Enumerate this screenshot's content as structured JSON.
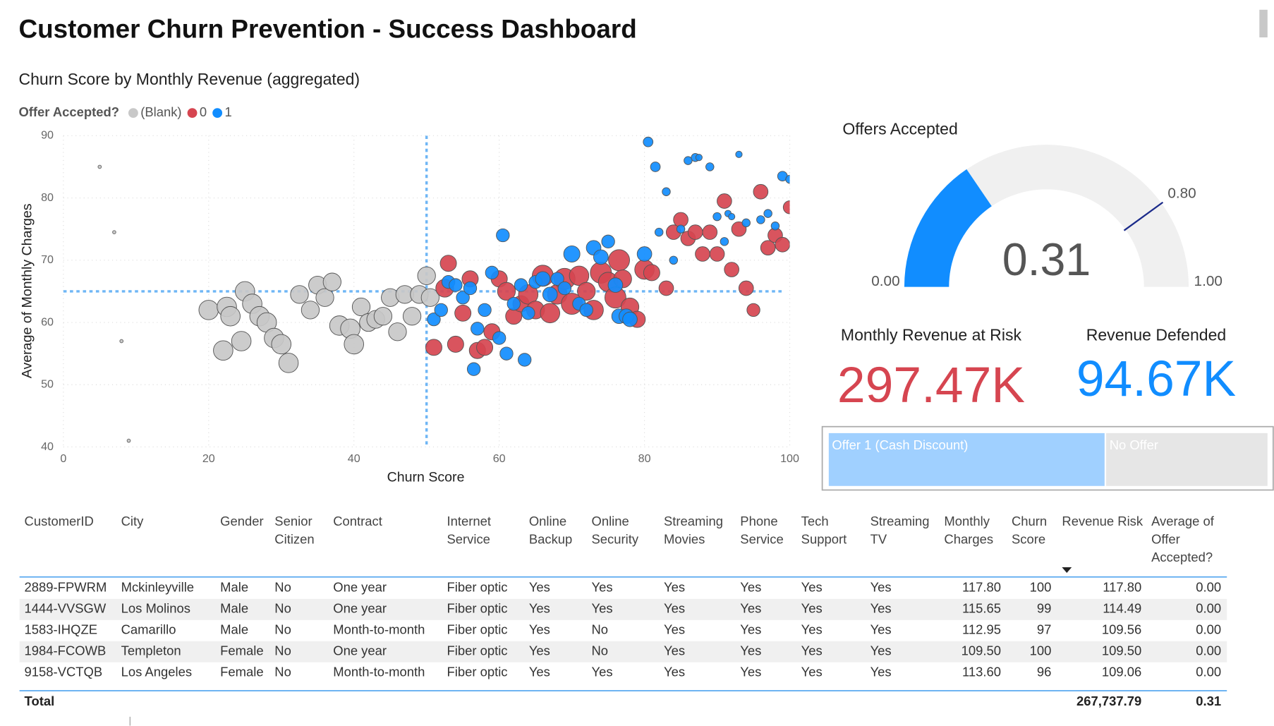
{
  "title": "Customer Churn Prevention - Success Dashboard",
  "chart_data": [
    {
      "type": "scatter",
      "title": "Churn Score by Monthly Revenue (aggregated)",
      "legend_title": "Offer Accepted?",
      "x_label": "Churn Score",
      "y_label": "Average of Monthly Charges",
      "xlim": [
        0,
        100
      ],
      "ylim": [
        40,
        90
      ],
      "xticks": [
        0,
        20,
        40,
        60,
        80,
        100
      ],
      "yticks": [
        40,
        50,
        60,
        70,
        80,
        90
      ],
      "grid": true,
      "reference_lines": {
        "x": 50,
        "y": 65
      },
      "series": [
        {
          "name": "(Blank)",
          "color": "#c8c8c8",
          "x": [
            5,
            7,
            8,
            9,
            20,
            22,
            22.5,
            23,
            24.5,
            25,
            26,
            27,
            28,
            29,
            30,
            31,
            32.5,
            34,
            35,
            36,
            37,
            38,
            39.5,
            40,
            41,
            42,
            43,
            44,
            45,
            46,
            47,
            48,
            49,
            50,
            50.5
          ],
          "values": [
            85,
            74.5,
            57,
            41,
            62,
            55.5,
            62.5,
            61,
            57,
            65,
            63,
            61,
            60,
            57.5,
            56.5,
            53.5,
            64.5,
            62,
            66,
            64,
            66.5,
            59.5,
            59,
            56.5,
            62.5,
            60,
            60.5,
            61,
            64,
            58.5,
            64.5,
            61,
            64.5,
            67.5,
            64
          ],
          "sizes": [
            2,
            2,
            2,
            2,
            12,
            12,
            12,
            12,
            12,
            12,
            12,
            12,
            12,
            12,
            12,
            12,
            11,
            11,
            11,
            11,
            11,
            12,
            12,
            12,
            11,
            11,
            11,
            11,
            11,
            11,
            11,
            11,
            11,
            11,
            11
          ]
        },
        {
          "name": "0",
          "color": "#d64550",
          "x": [
            51,
            52.5,
            53,
            54,
            55,
            56,
            57,
            58,
            59,
            60,
            61,
            62,
            63,
            64,
            65,
            66,
            67,
            68,
            69,
            70,
            71,
            72,
            73,
            74,
            75,
            76,
            76.5,
            77,
            78,
            79,
            80,
            81,
            83,
            84,
            85,
            86,
            87,
            88,
            89,
            90,
            91,
            92,
            93,
            94,
            95,
            96,
            97,
            98,
            99,
            100
          ],
          "values": [
            56,
            65.5,
            69.5,
            56.5,
            61.5,
            67,
            55.5,
            56,
            58.5,
            67,
            65,
            61,
            63,
            64.5,
            62,
            67.5,
            61.5,
            64.5,
            67,
            63,
            67.5,
            65,
            62,
            68,
            66.5,
            64,
            70,
            67,
            62.5,
            60.5,
            68.5,
            68,
            65.5,
            74.5,
            76.5,
            73.5,
            74.5,
            71,
            74.5,
            71,
            79.5,
            68.5,
            75,
            65.5,
            62,
            81,
            72,
            74,
            72.5,
            78.5
          ],
          "sizes": [
            10,
            11,
            10,
            10,
            10,
            10,
            10,
            10,
            10,
            10,
            11,
            10,
            10,
            12,
            11,
            13,
            12,
            12,
            13,
            13,
            12,
            11,
            12,
            13,
            12,
            13,
            13,
            11,
            11,
            10,
            12,
            10,
            9,
            9,
            9,
            9,
            9,
            9,
            9,
            9,
            9,
            9,
            9,
            9,
            8,
            9,
            9,
            9,
            9,
            8
          ]
        },
        {
          "name": "1",
          "color": "#118dff",
          "x": [
            51,
            52,
            53,
            54,
            55,
            56,
            56.5,
            57,
            58,
            59,
            60,
            60.5,
            61,
            62,
            63,
            63.5,
            64,
            65,
            66,
            67,
            68,
            69,
            70,
            71,
            72,
            73,
            74,
            75,
            76,
            76.5,
            77.5,
            78,
            80,
            80.5,
            81.5,
            82,
            83,
            84,
            85,
            86,
            87,
            87.5,
            89,
            90,
            91,
            91.5,
            92,
            93,
            94,
            96,
            97,
            98,
            99,
            100
          ],
          "values": [
            60.5,
            62,
            66.5,
            66,
            64,
            65.5,
            52.5,
            59,
            62,
            68,
            57.5,
            74,
            55,
            63,
            66,
            54,
            61.5,
            66.5,
            67,
            64.5,
            67,
            65.5,
            71,
            63,
            62,
            72,
            70.5,
            73,
            66,
            61,
            61,
            60.5,
            71,
            89,
            85,
            74.5,
            81,
            70,
            75,
            86,
            86.5,
            86.5,
            85,
            77,
            73,
            77.5,
            77,
            87,
            76,
            76.5,
            77.5,
            75.5,
            83.5,
            83
          ],
          "sizes": [
            8,
            8,
            8,
            8,
            8,
            8,
            8,
            8,
            8,
            8,
            8,
            8,
            8,
            8,
            8,
            8,
            8,
            8,
            9,
            9,
            8,
            8,
            10,
            8,
            8,
            9,
            9,
            8,
            9,
            9,
            9,
            9,
            9,
            6,
            6,
            5,
            5,
            5,
            5,
            5,
            5,
            4,
            5,
            5,
            5,
            4,
            4,
            4,
            5,
            5,
            5,
            5,
            6,
            5
          ]
        }
      ]
    },
    {
      "type": "gauge",
      "title": "Offers Accepted",
      "value": 0.31,
      "value_label": "0.31",
      "min": {
        "value": 0,
        "label": "0.00"
      },
      "max": {
        "value": 1,
        "label": "1.00"
      },
      "target": {
        "value": 0.8,
        "label": "0.80"
      },
      "color": "#118dff",
      "track_color": "#f0f0f0",
      "target_color": "#1a2a8a"
    },
    {
      "type": "treemap",
      "categories": [
        "Offer 1 (Cash Discount)",
        "No Offer"
      ],
      "values": [
        63,
        37
      ],
      "colors": [
        "#a0d0ff",
        "#e6e6e6"
      ]
    }
  ],
  "cards": [
    {
      "label": "Monthly Revenue at Risk",
      "value": "297.47K",
      "color": "#d64550"
    },
    {
      "label": "Revenue Defended",
      "value": "94.67K",
      "color": "#118dff"
    }
  ],
  "table": {
    "columns": [
      "CustomerID",
      "City",
      "Gender",
      "Senior Citizen",
      "Contract",
      "Internet Service",
      "Online Backup",
      "Online Security",
      "Streaming Movies",
      "Phone Service",
      "Tech Support",
      "Streaming TV",
      "Monthly Charges",
      "Churn Score",
      "Revenue Risk",
      "Average of Offer Accepted?"
    ],
    "rows": [
      [
        "2889-FPWRM",
        "Mckinleyville",
        "Male",
        "No",
        "One year",
        "Fiber optic",
        "Yes",
        "Yes",
        "Yes",
        "Yes",
        "Yes",
        "Yes",
        "117.80",
        "100",
        "117.80",
        "0.00"
      ],
      [
        "1444-VVSGW",
        "Los Molinos",
        "Male",
        "No",
        "One year",
        "Fiber optic",
        "Yes",
        "Yes",
        "Yes",
        "Yes",
        "Yes",
        "Yes",
        "115.65",
        "99",
        "114.49",
        "0.00"
      ],
      [
        "1583-IHQZE",
        "Camarillo",
        "Male",
        "No",
        "Month-to-month",
        "Fiber optic",
        "Yes",
        "No",
        "Yes",
        "Yes",
        "Yes",
        "Yes",
        "112.95",
        "97",
        "109.56",
        "0.00"
      ],
      [
        "1984-FCOWB",
        "Templeton",
        "Female",
        "No",
        "One year",
        "Fiber optic",
        "Yes",
        "No",
        "Yes",
        "Yes",
        "Yes",
        "Yes",
        "109.50",
        "100",
        "109.50",
        "0.00"
      ],
      [
        "9158-VCTQB",
        "Los Angeles",
        "Female",
        "No",
        "Month-to-month",
        "Fiber optic",
        "Yes",
        "Yes",
        "Yes",
        "Yes",
        "Yes",
        "Yes",
        "113.60",
        "96",
        "109.06",
        "0.00"
      ]
    ],
    "total_label": "Total",
    "total_revenue_risk": "267,737.79",
    "total_offer_accepted": "0.31"
  }
}
